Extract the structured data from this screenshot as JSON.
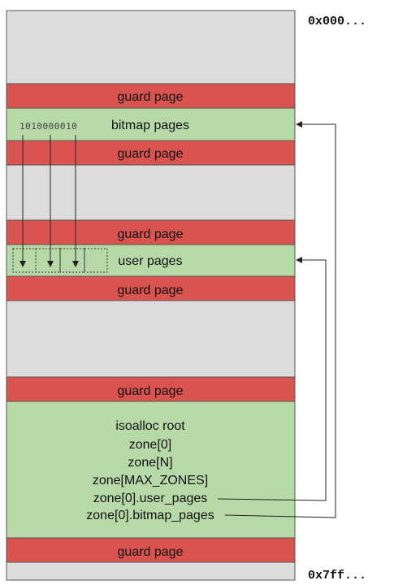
{
  "addresses": {
    "top": "0x000...",
    "bottom": "0x7ff..."
  },
  "labels": {
    "guard_page": "guard page",
    "bitmap_pages": "bitmap pages",
    "user_pages": "user pages",
    "bitmap_bits": "1010000010"
  },
  "root_block": {
    "lines": [
      "isoalloc root",
      "zone[0]",
      "zone[N]",
      "zone[MAX_ZONES]",
      "zone[0].user_pages",
      "zone[0].bitmap_pages"
    ]
  },
  "colors": {
    "empty": "#dcdcdc",
    "guard": "#d9534f",
    "data": "#b7d9a8",
    "border": "#555555",
    "arrow": "#222222"
  }
}
